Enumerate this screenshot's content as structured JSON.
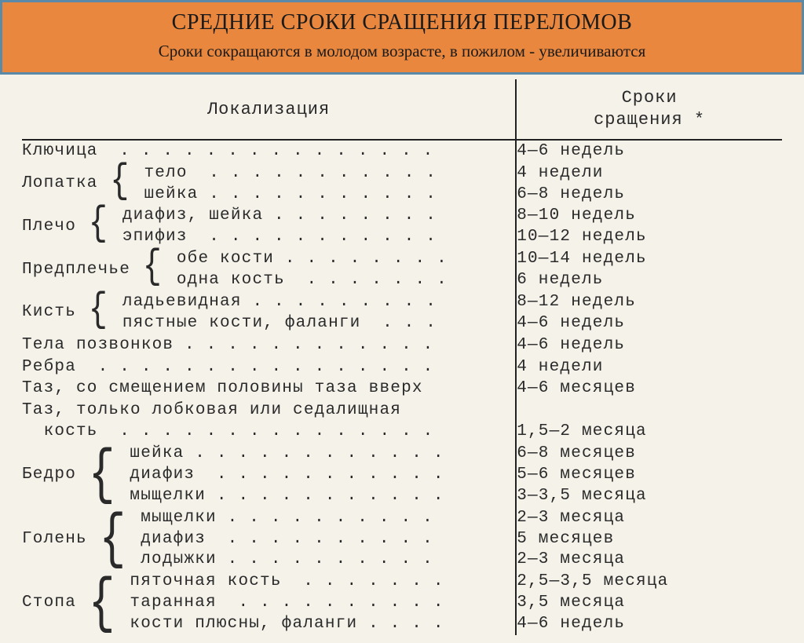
{
  "header": {
    "title": "СРЕДНИЕ СРОКИ СРАЩЕНИЯ ПЕРЕЛОМОВ",
    "subtitle": "Сроки сокращаются в молодом возрасте, в пожилом - увеличиваются",
    "bg_color": "#e8873d",
    "border_color": "#5a8aa8",
    "title_fontsize": 28,
    "subtitle_fontsize": 21
  },
  "table": {
    "header_loc": "Локализация",
    "header_dur": "Сроки\nсращения *",
    "font_family": "Courier New",
    "base_fontsize": 21,
    "header_fontsize": 22,
    "scan_bg": "#f5f2ea",
    "line_color": "#222222",
    "rows": [
      {
        "loc": "Ключица  . . . . . . . . . . . . . . .",
        "dur": "4—6 недель"
      },
      {
        "group": "Лопатка",
        "brace": 2,
        "sub": [
          {
            "loc": "тело  . . . . . . . . . . .",
            "dur": "4 недели"
          },
          {
            "loc": "шейка . . . . . . . . . . .",
            "dur": "6—8 недель"
          }
        ]
      },
      {
        "group": "Плечо",
        "brace": 2,
        "sub": [
          {
            "loc": "диафиз, шейка . . . . . . . .",
            "dur": "8—10 недель"
          },
          {
            "loc": "эпифиз  . . . . . . . . . . .",
            "dur": "10—12 недель"
          }
        ]
      },
      {
        "group": "Предплечье",
        "brace": 2,
        "sub": [
          {
            "loc": "обе кости . . . . . . . .",
            "dur": "10—14 недель"
          },
          {
            "loc": "одна кость  . . . . . . .",
            "dur": "6 недель"
          }
        ]
      },
      {
        "group": "Кисть",
        "brace": 2,
        "sub": [
          {
            "loc": "ладьевидная . . . . . . . . .",
            "dur": "8—12 недель"
          },
          {
            "loc": "пястные кости, фаланги  . . .",
            "dur": "4—6 недель"
          }
        ]
      },
      {
        "loc": "Тела позвонков . . . . . . . . . . . .",
        "dur": "4—6 недель"
      },
      {
        "loc": "Ребра  . . . . . . . . . . . . . . . .",
        "dur": "4 недели"
      },
      {
        "loc": "Таз, со смещением половины таза вверх",
        "dur": "4—6 месяцев"
      },
      {
        "loc": "Таз, только лобковая или седалищная\n  кость  . . . . . . . . . . . . . . .",
        "dur": "\n1,5—2 месяца"
      },
      {
        "group": "Бедро",
        "brace": 3,
        "sub": [
          {
            "loc": "шейка . . . . . . . . . . . .",
            "dur": "6—8 месяцев"
          },
          {
            "loc": "диафиз  . . . . . . . . . . .",
            "dur": "5—6 месяцев"
          },
          {
            "loc": "мыщелки . . . . . . . . . . .",
            "dur": "3—3,5 месяца"
          }
        ]
      },
      {
        "group": "Голень",
        "brace": 3,
        "sub": [
          {
            "loc": "мыщелки . . . . . . . . . .",
            "dur": "2—3 месяца"
          },
          {
            "loc": "диафиз  . . . . . . . . . .",
            "dur": "5 месяцев"
          },
          {
            "loc": "лодыжки . . . . . . . . . .",
            "dur": "2—3 месяца"
          }
        ]
      },
      {
        "group": "Стопа",
        "brace": 3,
        "sub": [
          {
            "loc": "пяточная кость  . . . . . . .",
            "dur": "2,5—3,5 месяца"
          },
          {
            "loc": "таранная  . . . . . . . . . .",
            "dur": "3,5 месяца"
          },
          {
            "loc": "кости плюсны, фаланги . . . .",
            "dur": "4—6 недель"
          }
        ]
      }
    ]
  }
}
